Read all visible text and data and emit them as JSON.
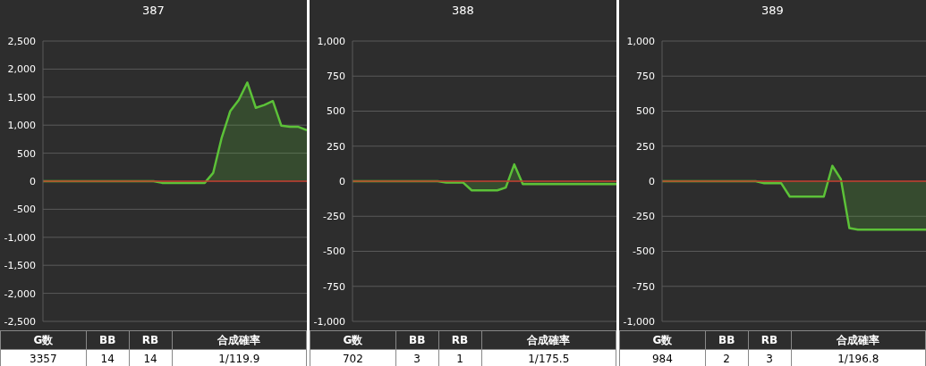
{
  "chart_data": [
    {
      "type": "area",
      "title": "387",
      "categories": [
        null,
        null,
        null,
        null,
        null,
        null,
        null,
        null,
        null,
        null,
        null,
        null,
        null,
        null,
        null,
        null,
        null,
        null,
        null,
        null,
        null,
        null,
        null,
        null,
        null,
        null,
        null,
        null,
        null,
        null,
        null,
        null
      ],
      "series": [
        {
          "color": "#5cc238",
          "values": [
            0,
            0,
            0,
            0,
            0,
            0,
            0,
            0,
            0,
            0,
            0,
            0,
            0,
            0,
            -30,
            -30,
            -30,
            -30,
            -30,
            -30,
            150,
            780,
            1250,
            1450,
            1760,
            1310,
            1360,
            1430,
            990,
            970,
            970,
            910
          ]
        }
      ],
      "ylim": [
        -2500,
        2500
      ],
      "yticks": [
        {
          "value": -2500,
          "label": "-2,500"
        },
        {
          "value": -2000,
          "label": "-2,000"
        },
        {
          "value": -1500,
          "label": "-1,500"
        },
        {
          "value": -1000,
          "label": "-1,000"
        },
        -500,
        0,
        500,
        {
          "value": 1000,
          "label": "1,000"
        },
        {
          "value": 1500,
          "label": "1,500"
        },
        {
          "value": 2000,
          "label": "2,000"
        },
        {
          "value": 2500,
          "label": "2,500"
        }
      ],
      "grid": "y",
      "tick_labels": "y",
      "ref_lines": [
        {
          "axis": "y",
          "value": 0,
          "color": "#c0392b"
        }
      ],
      "annotations": [
        "G数",
        "BB",
        "RB",
        "合成確率",
        "3357",
        "14",
        "14",
        "1/119.9"
      ]
    },
    {
      "type": "area",
      "title": "388",
      "categories": [
        null,
        null,
        null,
        null,
        null,
        null,
        null,
        null,
        null,
        null,
        null,
        null,
        null,
        null,
        null,
        null,
        null,
        null,
        null,
        null,
        null,
        null,
        null,
        null,
        null,
        null,
        null,
        null,
        null,
        null,
        null,
        null
      ],
      "series": [
        {
          "color": "#5cc238",
          "values": [
            0,
            0,
            0,
            0,
            0,
            0,
            0,
            0,
            0,
            0,
            0,
            -10,
            -10,
            -10,
            -65,
            -65,
            -65,
            -65,
            -45,
            120,
            -20,
            -20,
            -20,
            -20,
            -20,
            -20,
            -20,
            -20,
            -20,
            -20,
            -20,
            -20
          ]
        }
      ],
      "ylim": [
        -1000,
        1000
      ],
      "yticks": [
        {
          "value": -1000,
          "label": "-1,000"
        },
        -750,
        -500,
        -250,
        0,
        250,
        500,
        750,
        {
          "value": 1000,
          "label": "1,000"
        }
      ],
      "grid": "y",
      "tick_labels": "y",
      "ref_lines": [
        {
          "axis": "y",
          "value": 0,
          "color": "#c0392b"
        }
      ],
      "annotations": [
        "G数",
        "BB",
        "RB",
        "合成確率",
        "702",
        "3",
        "1",
        "1/175.5"
      ]
    },
    {
      "type": "area",
      "title": "389",
      "categories": [
        null,
        null,
        null,
        null,
        null,
        null,
        null,
        null,
        null,
        null,
        null,
        null,
        null,
        null,
        null,
        null,
        null,
        null,
        null,
        null,
        null,
        null,
        null,
        null,
        null,
        null,
        null,
        null,
        null,
        null,
        null,
        null
      ],
      "series": [
        {
          "color": "#5cc238",
          "values": [
            0,
            0,
            0,
            0,
            0,
            0,
            0,
            0,
            0,
            0,
            0,
            0,
            -15,
            -15,
            -15,
            -110,
            -110,
            -110,
            -110,
            -110,
            110,
            15,
            -335,
            -345,
            -345,
            -345,
            -345,
            -345,
            -345,
            -345,
            -345,
            -345
          ]
        }
      ],
      "ylim": [
        -1000,
        1000
      ],
      "yticks": [
        {
          "value": -1000,
          "label": "-1,000"
        },
        -750,
        -500,
        -250,
        0,
        250,
        500,
        750,
        {
          "value": 1000,
          "label": "1,000"
        }
      ],
      "grid": "y",
      "tick_labels": "y",
      "ref_lines": [
        {
          "axis": "y",
          "value": 0,
          "color": "#c0392b"
        }
      ],
      "annotations": [
        "G数",
        "BB",
        "RB",
        "合成確率",
        "984",
        "2",
        "3",
        "1/196.8"
      ]
    }
  ]
}
